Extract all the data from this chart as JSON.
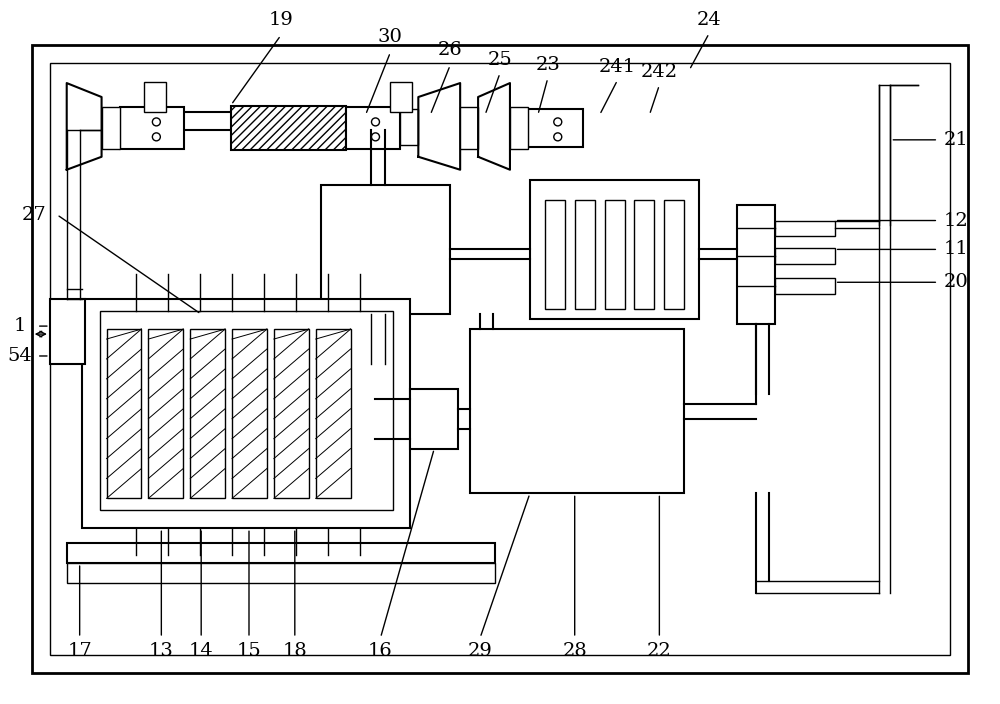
{
  "bg_color": "#ffffff",
  "lc": "#000000",
  "figsize": [
    10.0,
    7.04
  ],
  "dpi": 100
}
